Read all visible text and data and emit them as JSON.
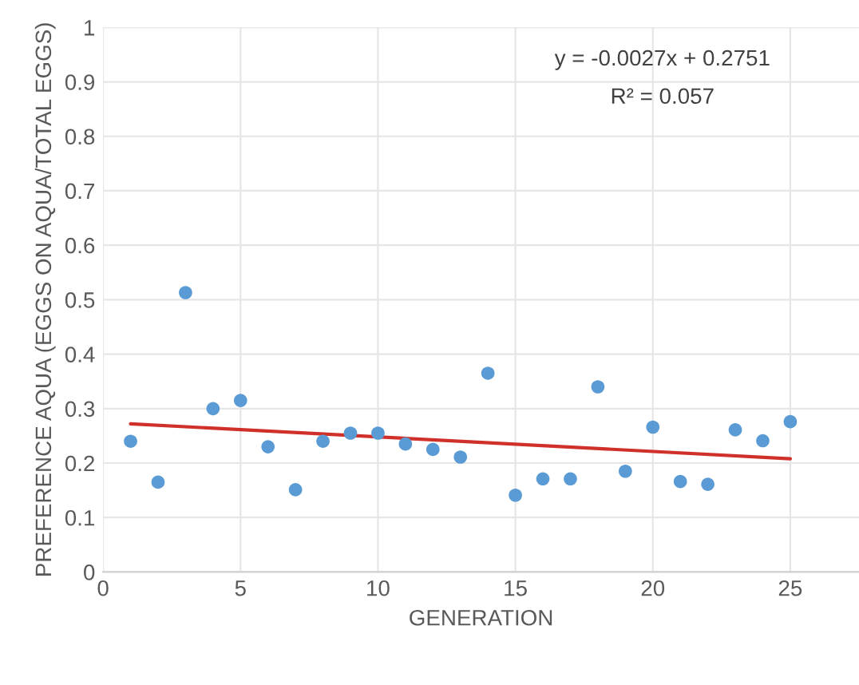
{
  "chart_data": {
    "type": "scatter",
    "xlabel": "GENERATION",
    "ylabel": "PREFERENCE AQUA (EGGS ON AQUA/TOTAL EGGS)",
    "grid": true,
    "series": [
      {
        "marker": "circle",
        "color": "#5b9bd5",
        "x": [
          1,
          2,
          3,
          4,
          5,
          6,
          7,
          8,
          9,
          10,
          11,
          12,
          13,
          14,
          15,
          16,
          17,
          18,
          19,
          20,
          21,
          22,
          23,
          24,
          25
        ],
        "values": [
          0.24,
          0.165,
          0.513,
          0.3,
          0.315,
          0.23,
          0.151,
          0.24,
          0.255,
          0.255,
          0.235,
          0.225,
          0.211,
          0.365,
          0.141,
          0.171,
          0.171,
          0.34,
          0.185,
          0.266,
          0.166,
          0.161,
          0.261,
          0.241,
          0.276
        ]
      },
      {
        "type": "line",
        "color": "#d0302a",
        "x": [
          1,
          25
        ],
        "values": [
          0.272,
          0.208
        ]
      }
    ],
    "xlim": [
      0,
      27.5
    ],
    "xticks": [
      0,
      5,
      10,
      15,
      20,
      25
    ],
    "ylim": [
      0,
      1
    ],
    "yticks": [
      0,
      0.1,
      0.2,
      0.3,
      0.4,
      0.5,
      0.6,
      0.7,
      0.8,
      0.9,
      1
    ],
    "annotations": [
      "y = -0.0027x + 0.2751",
      "R² = 0.057"
    ]
  }
}
